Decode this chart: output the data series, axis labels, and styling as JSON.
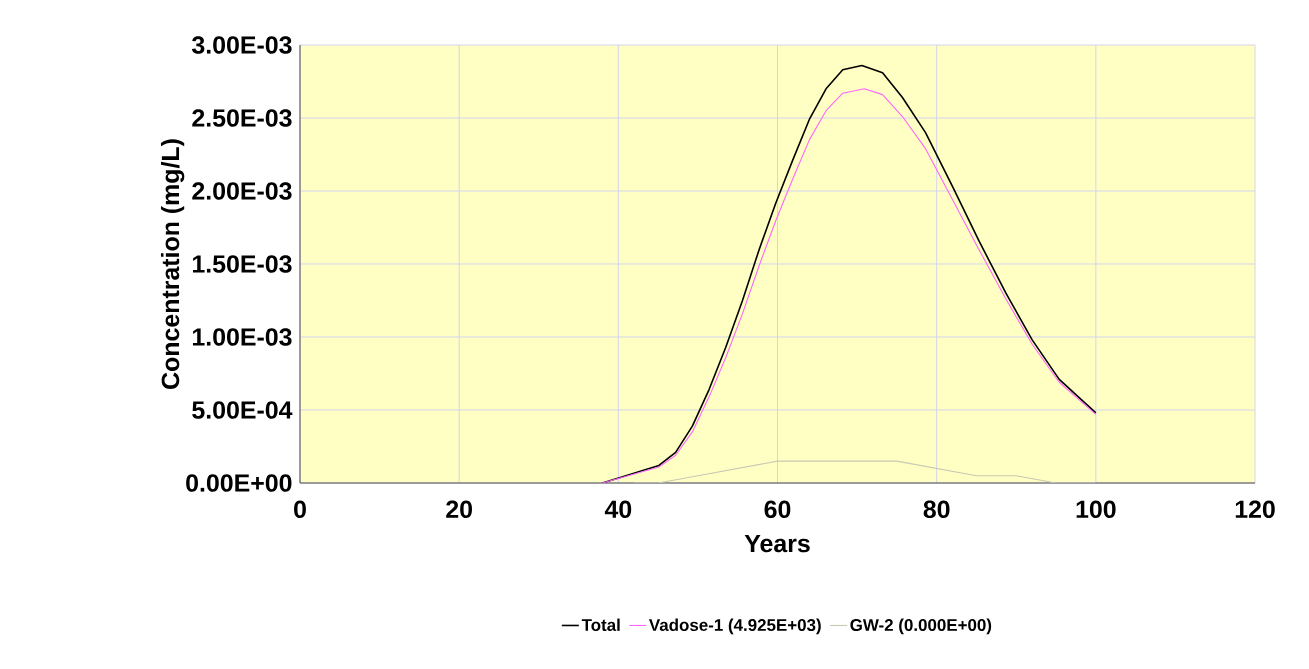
{
  "chart_data": {
    "type": "line",
    "xlabel": "Years",
    "ylabel": "Concentration (mg/L)",
    "xlim": [
      0,
      120
    ],
    "xticks": [
      0,
      20,
      40,
      60,
      80,
      100,
      120
    ],
    "ylim": [
      0,
      0.003
    ],
    "yticks": [
      {
        "value": 0,
        "label": "0.00E+00"
      },
      {
        "value": 0.0005,
        "label": "5.00E-04"
      },
      {
        "value": 0.001,
        "label": "1.00E-03"
      },
      {
        "value": 0.0015,
        "label": "1.50E-03"
      },
      {
        "value": 0.002,
        "label": "2.00E-03"
      },
      {
        "value": 0.0025,
        "label": "2.50E-03"
      },
      {
        "value": 0.003,
        "label": "3.00E-03"
      }
    ],
    "grid": true,
    "legend": "bottom",
    "marker": "none",
    "line_style": "solid",
    "series": [
      {
        "name": "Total",
        "color": "#000000",
        "x": [
          38,
          45.1,
          47.2,
          49.3,
          51.4,
          53.5,
          55.6,
          57.7,
          59.8,
          61.9,
          64,
          66.1,
          68.2,
          70.6,
          73.2,
          75.7,
          78.6,
          82,
          85.3,
          88.7,
          92,
          95.4,
          100
        ],
        "values": [
          0,
          0.00012,
          0.00021,
          0.00039,
          0.00064,
          0.00093,
          0.00125,
          0.0016,
          0.00192,
          0.00221,
          0.00249,
          0.0027,
          0.00283,
          0.00286,
          0.00281,
          0.00264,
          0.0024,
          0.00203,
          0.00166,
          0.0013,
          0.00098,
          0.00071,
          0.00048
        ]
      },
      {
        "name": "Vadose-1 (4.925E+03)",
        "color": "#ff66ff",
        "x": [
          38,
          45.1,
          47.2,
          49.3,
          51.4,
          53.5,
          55.6,
          57.7,
          59.8,
          61.9,
          64,
          66.1,
          68.2,
          70.9,
          73.2,
          75.7,
          78.6,
          82,
          85.3,
          88.7,
          92,
          95.4,
          100
        ],
        "values": [
          0,
          0.00011,
          0.00019,
          0.00035,
          0.00059,
          0.00086,
          0.00116,
          0.00149,
          0.0018,
          0.00208,
          0.00235,
          0.00255,
          0.00267,
          0.0027,
          0.00266,
          0.00251,
          0.00229,
          0.00194,
          0.0016,
          0.00126,
          0.00095,
          0.00069,
          0.00047
        ]
      },
      {
        "name": "GW-2 (0.000E+00)",
        "color": "#c8c8b4",
        "x": [
          42,
          45,
          50,
          55,
          60,
          65,
          70,
          75,
          80,
          85,
          90,
          95,
          100
        ],
        "values": [
          0,
          0,
          5e-05,
          0.0001,
          0.00015,
          0.00015,
          0.00015,
          0.00015,
          0.0001,
          5e-05,
          5e-05,
          0,
          0
        ]
      }
    ]
  }
}
